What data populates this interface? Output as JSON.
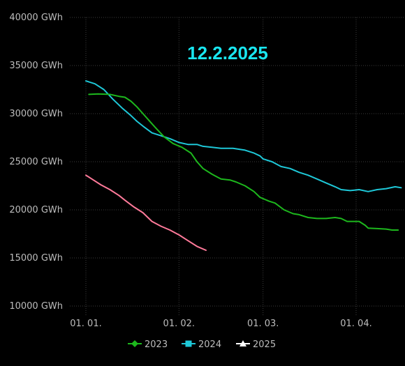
{
  "chart_data": {
    "type": "line",
    "title": "12.2.2025",
    "ylim": [
      10000,
      40000
    ],
    "y_unit": "GWh",
    "yticks": [
      {
        "value": 10000,
        "label": "10000 GWh"
      },
      {
        "value": 15000,
        "label": "15000 GWh"
      },
      {
        "value": 20000,
        "label": "20000 GWh"
      },
      {
        "value": 25000,
        "label": "25000 GWh"
      },
      {
        "value": 30000,
        "label": "30000 GWh"
      },
      {
        "value": 35000,
        "label": "35000 GWh"
      },
      {
        "value": 40000,
        "label": "40000 GWh"
      }
    ],
    "xticks": [
      {
        "date": "01-01",
        "label": "01. 01."
      },
      {
        "date": "02-01",
        "label": "01. 02."
      },
      {
        "date": "03-01",
        "label": "01. 03."
      },
      {
        "date": "04-01",
        "label": "01. 04."
      }
    ],
    "grid": true,
    "legend_position": "bottom",
    "series": [
      {
        "name": "2023",
        "color": "#1db81d",
        "marker": "diamond",
        "points": [
          [
            "01-02",
            32000
          ],
          [
            "01-05",
            32050
          ],
          [
            "01-09",
            32000
          ],
          [
            "01-12",
            31800
          ],
          [
            "01-14",
            31700
          ],
          [
            "01-16",
            31300
          ],
          [
            "01-18",
            30700
          ],
          [
            "01-20",
            30000
          ],
          [
            "01-22",
            29300
          ],
          [
            "01-24",
            28600
          ],
          [
            "01-27",
            27600
          ],
          [
            "01-30",
            26900
          ],
          [
            "02-02",
            26500
          ],
          [
            "02-05",
            25900
          ],
          [
            "02-07",
            25000
          ],
          [
            "02-09",
            24300
          ],
          [
            "02-12",
            23700
          ],
          [
            "02-15",
            23200
          ],
          [
            "02-18",
            23100
          ],
          [
            "02-20",
            22900
          ],
          [
            "02-23",
            22500
          ],
          [
            "02-26",
            21900
          ],
          [
            "02-28",
            21300
          ],
          [
            "03-03",
            20900
          ],
          [
            "03-05",
            20700
          ],
          [
            "03-08",
            20000
          ],
          [
            "03-11",
            19600
          ],
          [
            "03-13",
            19500
          ],
          [
            "03-16",
            19200
          ],
          [
            "03-19",
            19100
          ],
          [
            "03-22",
            19100
          ],
          [
            "03-25",
            19200
          ],
          [
            "03-27",
            19100
          ],
          [
            "03-29",
            18800
          ],
          [
            "03-31",
            18800
          ],
          [
            "04-02",
            18800
          ],
          [
            "04-04",
            18400
          ],
          [
            "04-05",
            18100
          ],
          [
            "04-08",
            18050
          ],
          [
            "04-11",
            18000
          ],
          [
            "04-13",
            17900
          ],
          [
            "04-15",
            17900
          ]
        ]
      },
      {
        "name": "2024",
        "color": "#1ec8d8",
        "marker": "square",
        "points": [
          [
            "01-01",
            33400
          ],
          [
            "01-04",
            33100
          ],
          [
            "01-07",
            32500
          ],
          [
            "01-10",
            31500
          ],
          [
            "01-13",
            30600
          ],
          [
            "01-16",
            29800
          ],
          [
            "01-18",
            29200
          ],
          [
            "01-20",
            28700
          ],
          [
            "01-23",
            28000
          ],
          [
            "01-26",
            27700
          ],
          [
            "01-29",
            27400
          ],
          [
            "02-01",
            27000
          ],
          [
            "02-04",
            26800
          ],
          [
            "02-07",
            26800
          ],
          [
            "02-09",
            26600
          ],
          [
            "02-12",
            26500
          ],
          [
            "02-15",
            26400
          ],
          [
            "02-19",
            26400
          ],
          [
            "02-23",
            26200
          ],
          [
            "02-26",
            25900
          ],
          [
            "02-28",
            25600
          ],
          [
            "03-01",
            25300
          ],
          [
            "03-04",
            25000
          ],
          [
            "03-07",
            24500
          ],
          [
            "03-10",
            24300
          ],
          [
            "03-13",
            23900
          ],
          [
            "03-16",
            23600
          ],
          [
            "03-19",
            23200
          ],
          [
            "03-22",
            22800
          ],
          [
            "03-25",
            22400
          ],
          [
            "03-27",
            22100
          ],
          [
            "03-30",
            22000
          ],
          [
            "04-02",
            22100
          ],
          [
            "04-05",
            21900
          ],
          [
            "04-08",
            22100
          ],
          [
            "04-11",
            22200
          ],
          [
            "04-14",
            22400
          ],
          [
            "04-16",
            22300
          ]
        ]
      },
      {
        "name": "2025",
        "color": "#ff7a9a",
        "legend_color": "#ffffff",
        "marker": "triangle",
        "points": [
          [
            "01-01",
            23600
          ],
          [
            "01-03",
            23200
          ],
          [
            "01-06",
            22600
          ],
          [
            "01-09",
            22100
          ],
          [
            "01-12",
            21500
          ],
          [
            "01-14",
            21000
          ],
          [
            "01-17",
            20300
          ],
          [
            "01-20",
            19700
          ],
          [
            "01-23",
            18800
          ],
          [
            "01-26",
            18300
          ],
          [
            "01-29",
            17900
          ],
          [
            "02-01",
            17400
          ],
          [
            "02-04",
            16800
          ],
          [
            "02-07",
            16200
          ],
          [
            "02-10",
            15800
          ]
        ]
      }
    ]
  }
}
